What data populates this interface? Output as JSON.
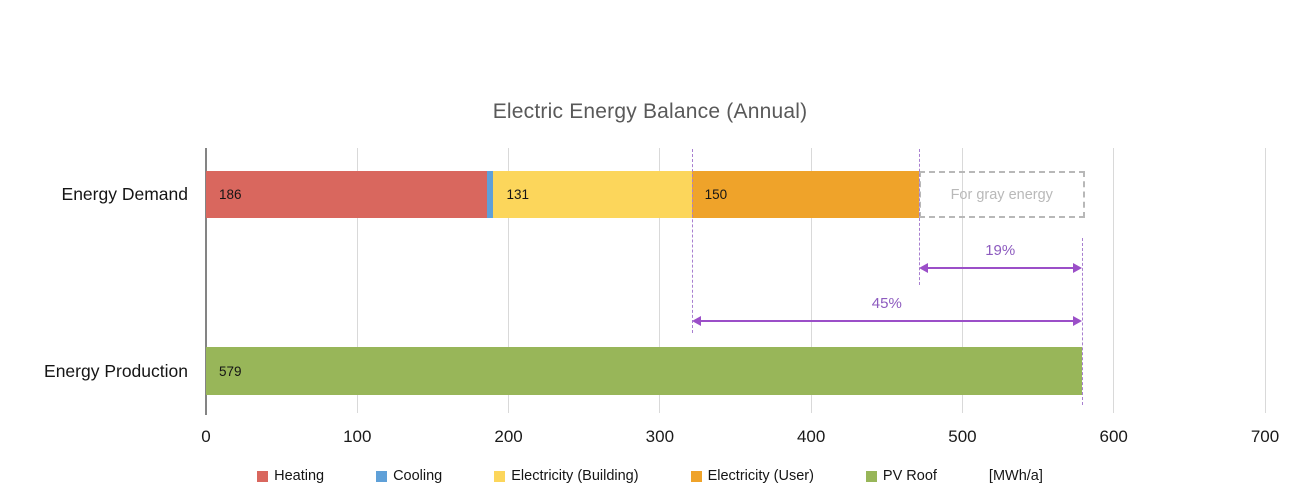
{
  "chart_data": {
    "type": "bar",
    "orientation": "horizontal",
    "title": "Electric Energy Balance (Annual)",
    "unit": "[MWh/a]",
    "categories": [
      "Energy Demand",
      "Energy Production"
    ],
    "axis": {
      "min": 0,
      "max": 700,
      "ticks": [
        0,
        100,
        200,
        300,
        400,
        500,
        600,
        700
      ],
      "grid": true
    },
    "series": [
      {
        "name": "Heating",
        "color": "#d9675e",
        "values": [
          186,
          0
        ]
      },
      {
        "name": "Cooling",
        "color": "#5fa0d8",
        "values": [
          4,
          0
        ]
      },
      {
        "name": "Electricity (Building)",
        "color": "#fcd65b",
        "values": [
          131,
          0
        ]
      },
      {
        "name": "Electricity (User)",
        "color": "#efa32a",
        "values": [
          150,
          0
        ]
      },
      {
        "name": "PV Roof",
        "color": "#98b659",
        "values": [
          0,
          579
        ]
      }
    ],
    "visible_bar_labels": [
      "186",
      "131",
      "150",
      "579"
    ],
    "annotations": {
      "gray_box": {
        "label": "For gray energy",
        "from": 471,
        "to": 581,
        "row": "Energy Demand"
      },
      "arrows": [
        {
          "label": "19%",
          "from": 471,
          "to": 579
        },
        {
          "label": "45%",
          "from": 321,
          "to": 579
        }
      ],
      "purple": "#9b4fc8",
      "gray_dashed": "#b8b8b8"
    },
    "legend_position": "bottom"
  }
}
